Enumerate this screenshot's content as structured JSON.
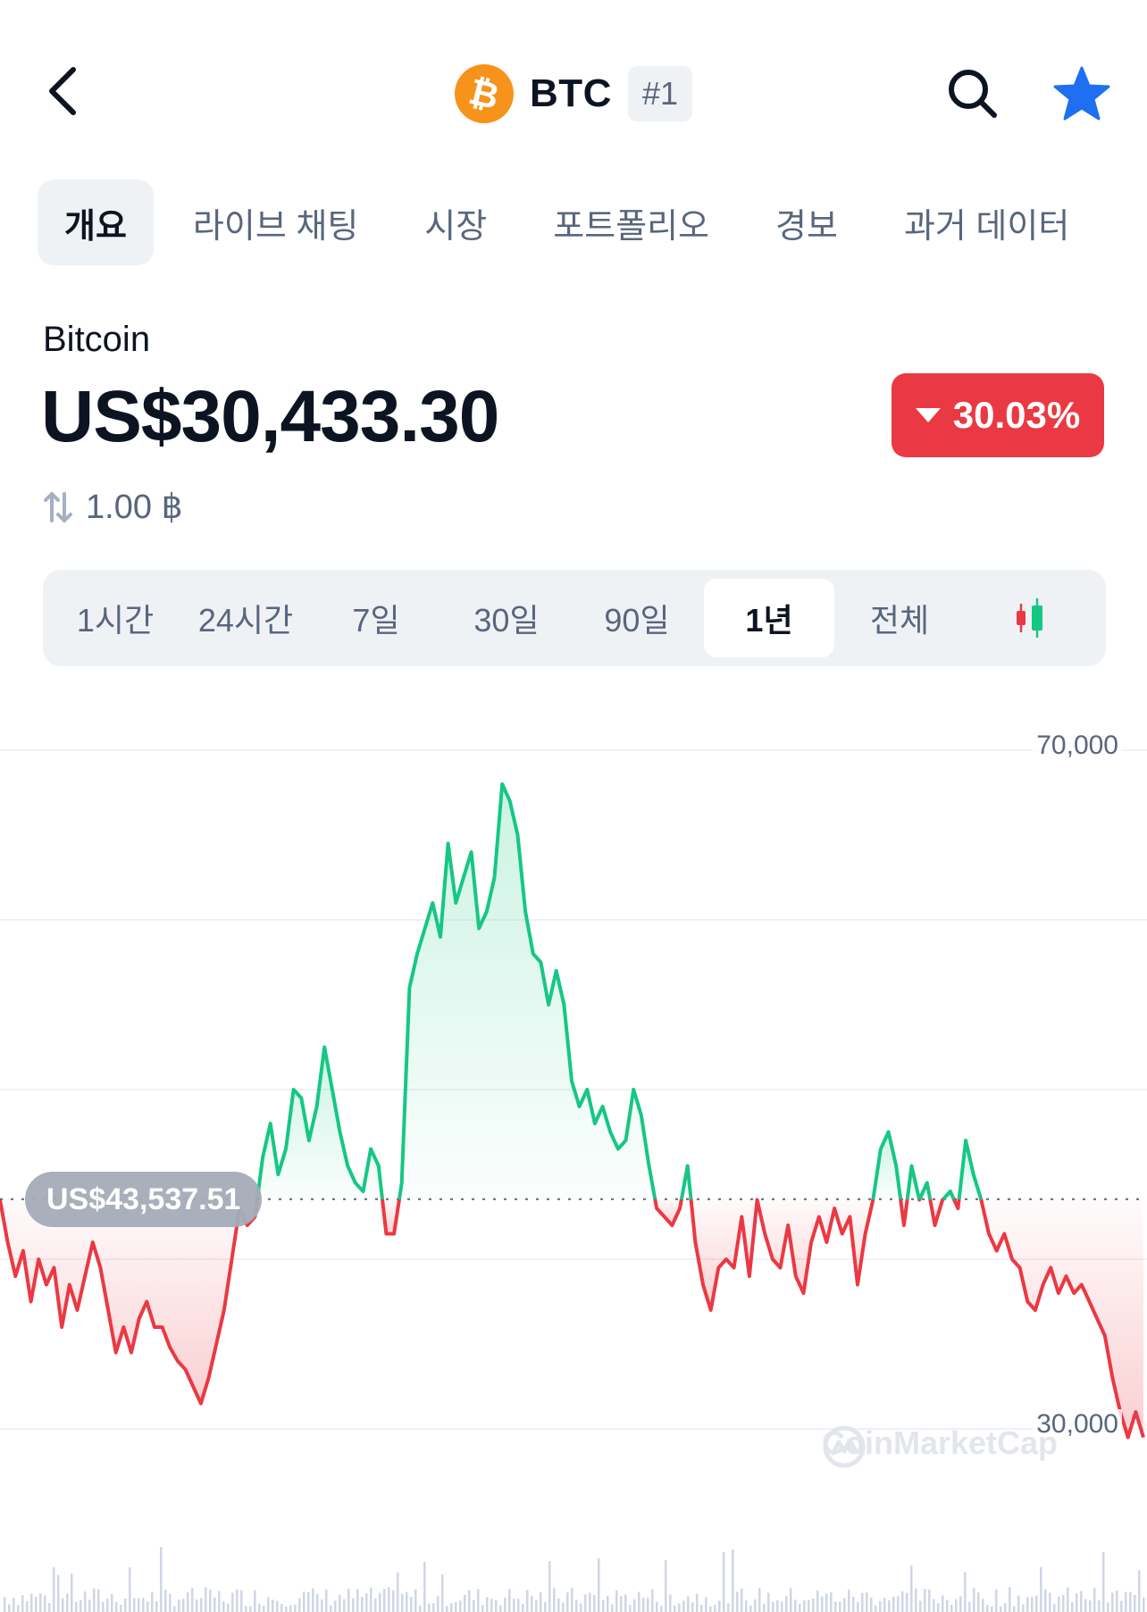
{
  "header": {
    "back_icon": "chevron-left-icon",
    "coin_symbol": "BTC",
    "rank": "#1",
    "search_icon": "search-icon",
    "star_icon": "star-icon",
    "accent_color": "#1e6ff1"
  },
  "tabs": [
    {
      "label": "개요",
      "active": true
    },
    {
      "label": "라이브 채팅",
      "active": false
    },
    {
      "label": "시장",
      "active": false
    },
    {
      "label": "포트폴리오",
      "active": false
    },
    {
      "label": "경보",
      "active": false
    },
    {
      "label": "과거 데이터",
      "active": false
    }
  ],
  "coin": {
    "name": "Bitcoin",
    "price": "US$30,433.30",
    "change": "30.03%",
    "change_color": "#ea3943",
    "conversion": "1.00 ฿"
  },
  "ranges": [
    {
      "label": "1시간"
    },
    {
      "label": "24시간"
    },
    {
      "label": "7일"
    },
    {
      "label": "30일"
    },
    {
      "label": "90일"
    },
    {
      "label": "1년",
      "active": true
    },
    {
      "label": "전체"
    }
  ],
  "chart_data": {
    "type": "area",
    "reference_price_label": "US$43,537.51",
    "reference_value": 43537.51,
    "y_ticks": [
      "70,000",
      "30,000"
    ],
    "ylim": [
      26000,
      70500
    ],
    "up_color": "#16c784",
    "down_color": "#ea3943",
    "watermark": "CoinMarketCap",
    "series": [
      {
        "values": [
          43500,
          41000,
          39000,
          40500,
          37500,
          40000,
          38500,
          39500,
          36000,
          38500,
          37000,
          39000,
          41000,
          39500,
          37000,
          34500,
          36000,
          34500,
          36500,
          37500,
          36000,
          36000,
          34800,
          34000,
          33500,
          32500,
          31500,
          33000,
          35000,
          37000,
          40000,
          43000,
          42000,
          42500,
          46000,
          48000,
          45000,
          46500,
          50000,
          49500,
          47000,
          49000,
          52500,
          50000,
          47500,
          45500,
          44500,
          44000,
          46500,
          45500,
          41500,
          41500,
          44500,
          56000,
          58000,
          59500,
          61000,
          59000,
          64500,
          61000,
          62500,
          64000,
          59500,
          60500,
          62500,
          68000,
          67000,
          65000,
          60500,
          58000,
          57500,
          55000,
          57000,
          55000,
          50500,
          49000,
          50000,
          48000,
          49000,
          47500,
          46500,
          47000,
          50000,
          48500,
          45500,
          43000,
          42500,
          42000,
          43000,
          45500,
          41000,
          38500,
          37000,
          39500,
          40000,
          39500,
          42500,
          39000,
          43500,
          41500,
          40000,
          39500,
          42000,
          39000,
          38000,
          41000,
          42500,
          41000,
          43000,
          41500,
          42500,
          38500,
          41500,
          43500,
          46500,
          47500,
          45500,
          42000,
          45500,
          43500,
          44500,
          42000,
          43500,
          44000,
          43000,
          47000,
          45000,
          43500,
          41500,
          40500,
          41500,
          40000,
          39500,
          37500,
          37000,
          38500,
          39500,
          38000,
          39000,
          38000,
          38500,
          37500,
          36500,
          35500,
          33000,
          31000,
          29500,
          31000,
          29500
        ]
      }
    ]
  }
}
